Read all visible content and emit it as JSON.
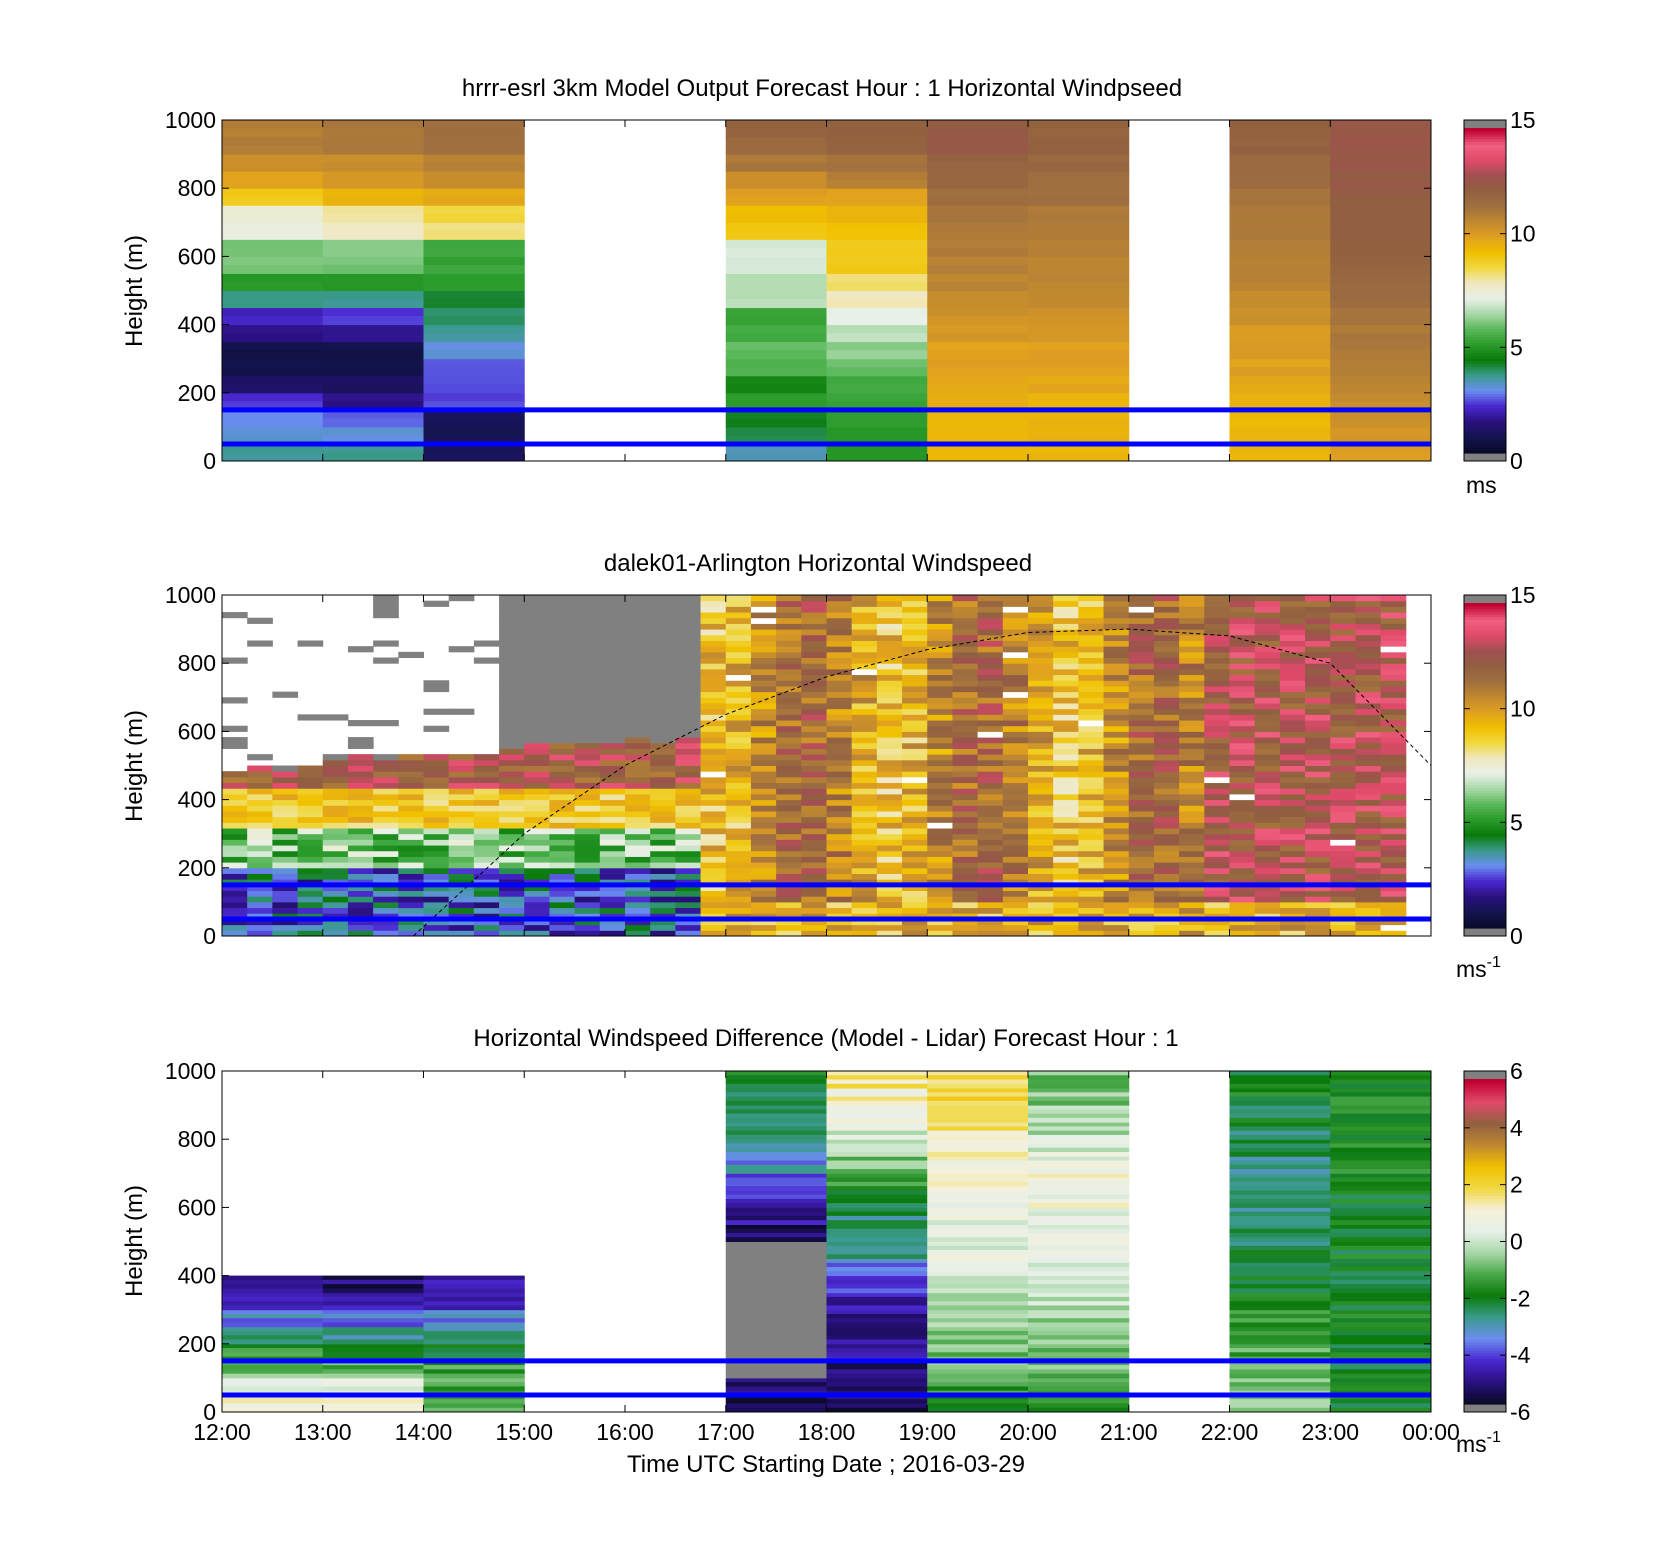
{
  "colors": {
    "speed_scale": [
      "#808080",
      "#0a0a2a",
      "#141450",
      "#2a1080",
      "#4a28d0",
      "#6a8ef0",
      "#3a9a8a",
      "#0a7a0a",
      "#2a9a2a",
      "#5ab85a",
      "#a8d8a8",
      "#e8f0e8",
      "#f0e8c0",
      "#f0d840",
      "#f0c000",
      "#e0a020",
      "#c08830",
      "#a07040",
      "#906040",
      "#a05050",
      "#e04a6a",
      "#f06080",
      "#c00030",
      "#808080"
    ],
    "diff_scale": [
      "#808080",
      "#0a0a2a",
      "#2a1080",
      "#4a28d0",
      "#6a8ef0",
      "#3a9a8a",
      "#0a7a0a",
      "#4aa84a",
      "#a8d8a8",
      "#e8f0e8",
      "#f5f0d8",
      "#f0d840",
      "#f0c000",
      "#c08830",
      "#906040",
      "#e04a6a",
      "#c00030",
      "#808080"
    ],
    "layer_lines": "#0000ff",
    "curve": "#000000"
  },
  "chart_data": [
    {
      "type": "heatmap",
      "title": "hrrr-esrl 3km Model Output   Forecast Hour : 1 Horizontal Windpseed",
      "ylabel": "Height (m)",
      "xlabel": "",
      "x": [
        "12:00",
        "13:00",
        "14:00",
        "15:00",
        "16:00",
        "17:00",
        "18:00",
        "19:00",
        "20:00",
        "21:00",
        "22:00",
        "23:00",
        "00:00"
      ],
      "ylim": [
        0,
        1000
      ],
      "yticks": [
        0,
        200,
        400,
        600,
        800,
        1000
      ],
      "clim": [
        0,
        15
      ],
      "colorbar_ticks": [
        0,
        5,
        10,
        15
      ],
      "colorbar_unit": "ms",
      "colorbar_unit_sup": "",
      "reference_heights": [
        150,
        50
      ],
      "missing_hours": [
        "15:00",
        "16:00",
        "21:00"
      ],
      "profiles_levels_m": [
        25,
        75,
        125,
        175,
        225,
        275,
        325,
        375,
        425,
        475,
        525,
        575,
        625,
        675,
        725,
        775,
        825,
        875,
        925,
        975
      ],
      "profiles": [
        {
          "time": "12:00",
          "values": [
            3.5,
            3.0,
            2.8,
            2.2,
            1.0,
            0.6,
            0.6,
            1.5,
            2.0,
            3.5,
            5.0,
            6.0,
            6.0,
            7.2,
            7.5,
            9.0,
            10.0,
            10.5,
            11.0,
            11.0
          ]
        },
        {
          "time": "13:00",
          "values": [
            3.5,
            3.0,
            2.5,
            1.5,
            1.0,
            0.6,
            0.6,
            1.6,
            2.2,
            3.6,
            5.0,
            6.0,
            6.2,
            7.8,
            8.0,
            9.5,
            10.2,
            10.6,
            11.2,
            11.2
          ]
        },
        {
          "time": "14:00",
          "values": [
            0.8,
            0.8,
            0.8,
            2.4,
            2.4,
            2.4,
            3.0,
            3.4,
            3.8,
            4.0,
            5.0,
            5.2,
            5.4,
            8.2,
            8.6,
            9.8,
            10.6,
            11.0,
            11.4,
            11.4
          ]
        },
        {
          "time": "15:00",
          "values": []
        },
        {
          "time": "16:00",
          "values": []
        },
        {
          "time": "17:00",
          "values": [
            3.2,
            4.0,
            4.2,
            5.0,
            4.5,
            5.5,
            5.8,
            5.4,
            5.2,
            6.6,
            6.6,
            7.0,
            7.0,
            9.0,
            9.3,
            10.0,
            10.5,
            11.2,
            11.8,
            12.0
          ]
        },
        {
          "time": "18:00",
          "values": [
            5.0,
            5.0,
            5.0,
            5.2,
            5.4,
            5.8,
            6.2,
            6.6,
            7.2,
            7.8,
            8.3,
            9.0,
            9.0,
            9.2,
            9.5,
            10.0,
            11.0,
            11.4,
            12.0,
            12.0
          ]
        },
        {
          "time": "19:00",
          "values": [
            9.5,
            9.5,
            9.5,
            9.6,
            9.8,
            10.0,
            10.0,
            10.2,
            10.4,
            10.6,
            10.8,
            10.9,
            11.0,
            11.1,
            11.2,
            11.5,
            11.8,
            12.0,
            12.4,
            12.4
          ]
        },
        {
          "time": "20:00",
          "values": [
            9.5,
            9.5,
            9.5,
            9.6,
            9.8,
            10.0,
            10.0,
            10.2,
            10.4,
            10.6,
            10.8,
            10.9,
            11.0,
            11.1,
            11.2,
            11.4,
            11.6,
            11.8,
            12.0,
            12.0
          ]
        },
        {
          "time": "21:00",
          "values": []
        },
        {
          "time": "22:00",
          "values": [
            9.5,
            9.5,
            9.5,
            9.6,
            9.8,
            10.0,
            10.1,
            10.2,
            10.4,
            10.6,
            10.8,
            10.9,
            11.0,
            11.1,
            11.2,
            11.4,
            11.6,
            11.8,
            12.0,
            12.0
          ]
        },
        {
          "time": "23:00",
          "values": [
            10.0,
            10.2,
            10.4,
            10.6,
            10.8,
            11.0,
            11.1,
            11.2,
            11.4,
            11.6,
            11.8,
            11.9,
            12.0,
            12.1,
            12.2,
            12.3,
            12.4,
            12.5,
            12.6,
            12.6
          ]
        }
      ]
    },
    {
      "type": "heatmap",
      "title": "dalek01-Arlington  Horizontal Windspeed",
      "ylabel": "Height (m)",
      "xlabel": "",
      "x": [
        "12:00",
        "13:00",
        "14:00",
        "15:00",
        "16:00",
        "17:00",
        "18:00",
        "19:00",
        "20:00",
        "21:00",
        "22:00",
        "23:00",
        "00:00"
      ],
      "ylim": [
        0,
        1000
      ],
      "yticks": [
        0,
        200,
        400,
        600,
        800,
        1000
      ],
      "clim": [
        0,
        15
      ],
      "colorbar_ticks": [
        0,
        5,
        10,
        15
      ],
      "colorbar_unit": "ms",
      "colorbar_unit_sup": "-1",
      "reference_heights": [
        150,
        50
      ],
      "data_end_time": "23:52",
      "boundary_layer_curve": {
        "hours_after_start": [
          1.9,
          3.0,
          4.0,
          5.0,
          6.0,
          7.0,
          8.0,
          9.0,
          10.0,
          11.0,
          12.0
        ],
        "height_m": [
          0,
          300,
          500,
          650,
          760,
          840,
          890,
          900,
          880,
          800,
          500
        ]
      },
      "regimes": [
        {
          "from": "12:00",
          "to": "16:40",
          "description_ranges": "low levels 1-4 m/s, mid 5-9 m/s, aloft 12-14 m/s; no data above ~500-600 m"
        },
        {
          "from": "16:40",
          "to": "23:52",
          "range_m_s": [
            8,
            14
          ]
        }
      ]
    },
    {
      "type": "heatmap",
      "title": "Horizontal Windspeed Difference (Model - Lidar) Forecast Hour : 1",
      "ylabel": "Height (m)",
      "xlabel": "Time UTC  Starting Date ; 2016-03-29",
      "x": [
        "12:00",
        "13:00",
        "14:00",
        "15:00",
        "16:00",
        "17:00",
        "18:00",
        "19:00",
        "20:00",
        "21:00",
        "22:00",
        "23:00",
        "00:00"
      ],
      "ylim": [
        0,
        1000
      ],
      "yticks": [
        0,
        200,
        400,
        600,
        800,
        1000
      ],
      "clim": [
        -6,
        6
      ],
      "colorbar_ticks": [
        -6,
        -4,
        -2,
        0,
        2,
        4,
        6
      ],
      "colorbar_unit": "ms",
      "colorbar_unit_sup": "-1",
      "reference_heights": [
        150,
        50
      ],
      "profiles_levels_m": [
        25,
        75,
        125,
        175,
        225,
        275,
        325,
        375,
        425,
        475,
        525,
        575,
        625,
        675,
        725,
        775,
        825,
        875,
        925,
        975
      ],
      "profiles": [
        {
          "time": "12:00",
          "values": [
            1.2,
            0.5,
            -0.8,
            -1.6,
            -2.6,
            -3.6,
            -4.8,
            -5.2,
            null,
            null,
            null,
            null,
            null,
            null,
            null,
            null,
            null,
            null,
            null,
            null
          ]
        },
        {
          "time": "13:00",
          "values": [
            1.0,
            0.3,
            -1.0,
            -2.0,
            -2.8,
            -3.8,
            -5.0,
            -5.4,
            null,
            null,
            null,
            null,
            null,
            null,
            null,
            null,
            null,
            null,
            null,
            null
          ]
        },
        {
          "time": "14:00",
          "values": [
            -1.0,
            -1.2,
            -1.4,
            -2.2,
            -2.8,
            -3.6,
            -4.4,
            -5.0,
            null,
            null,
            null,
            null,
            null,
            null,
            null,
            null,
            null,
            null,
            null,
            null
          ]
        },
        {
          "time": "15:00",
          "values": []
        },
        {
          "time": "16:00",
          "values": []
        },
        {
          "time": "17:00",
          "values": [
            -6.0,
            -5.5,
            null,
            null,
            null,
            null,
            null,
            null,
            null,
            null,
            -5.4,
            -5.0,
            -4.4,
            -4.0,
            -3.4,
            -3.0,
            -2.6,
            -2.4,
            -2.2,
            -2.0
          ]
        },
        {
          "time": "18:00",
          "values": [
            -5.6,
            -5.4,
            -5.2,
            -5.0,
            -5.2,
            -5.0,
            -4.8,
            -4.4,
            -3.6,
            -3.0,
            -2.8,
            -2.6,
            -2.4,
            -1.6,
            -0.8,
            -0.4,
            0.2,
            0.6,
            1.2,
            1.6
          ]
        },
        {
          "time": "19:00",
          "values": [
            -1.8,
            -1.4,
            -1.0,
            -0.8,
            -0.6,
            -0.4,
            -0.2,
            0.0,
            0.2,
            0.4,
            0.5,
            0.6,
            0.8,
            1.0,
            1.2,
            1.4,
            1.6,
            1.8,
            2.0,
            2.0
          ]
        },
        {
          "time": "20:00",
          "values": [
            -1.6,
            -1.2,
            -1.0,
            -0.8,
            -0.6,
            -0.4,
            -0.2,
            0.0,
            0.2,
            0.4,
            0.5,
            0.6,
            0.8,
            1.0,
            0.6,
            0.2,
            -0.2,
            -0.4,
            -0.6,
            -0.8
          ]
        },
        {
          "time": "21:00",
          "values": []
        },
        {
          "time": "22:00",
          "values": [
            -0.6,
            -0.8,
            -1.0,
            -1.2,
            -1.4,
            -1.6,
            -1.8,
            -2.0,
            -2.2,
            -2.4,
            -2.4,
            -2.6,
            -2.8,
            -3.0,
            -2.8,
            -2.6,
            -2.4,
            -2.2,
            -2.0,
            -2.0
          ]
        },
        {
          "time": "23:00",
          "values": [
            -2.0,
            -2.0,
            -2.2,
            -2.0,
            -2.2,
            -2.0,
            -2.0,
            -2.2,
            -2.0,
            -2.0,
            -2.0,
            -2.0,
            -2.0,
            -1.8,
            -1.8,
            -1.8,
            -1.8,
            -1.8,
            -1.8,
            -1.8
          ]
        }
      ]
    }
  ]
}
